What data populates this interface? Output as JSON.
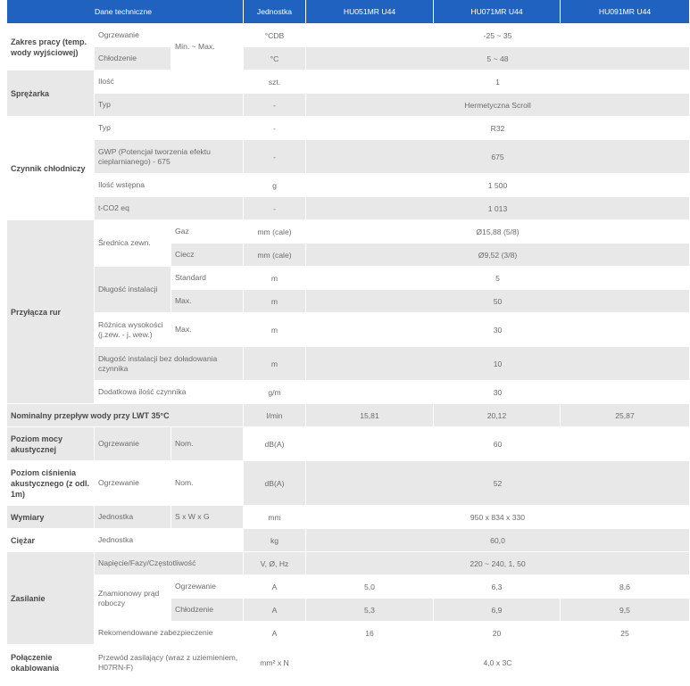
{
  "header": {
    "spec": "Dane techniczne",
    "unit": "Jednostka",
    "m1": "HU051MR U44",
    "m2": "HU071MR U44",
    "m3": "HU091MR U44"
  },
  "zakres": {
    "cat": "Zakres pracy (temp. wody wyjściowej)",
    "minmax": "Min. ~ Max.",
    "r1": {
      "label": "Ogrzewanie",
      "unit": "°CDB",
      "val": "-25 ~ 35"
    },
    "r2": {
      "label": "Chłodzenie",
      "unit": "°C",
      "val": "5 ~ 48"
    }
  },
  "sprezarka": {
    "cat": "Sprężarka",
    "r1": {
      "label": "Ilość",
      "unit": "szt.",
      "val": "1"
    },
    "r2": {
      "label": "Typ",
      "unit": "-",
      "val": "Hermetyczna Scroll"
    }
  },
  "czynnik": {
    "cat": "Czynnik chłodniczy",
    "r1": {
      "label": "Typ",
      "unit": "-",
      "val": "R32"
    },
    "r2": {
      "label": "GWP (Potencjał tworzenia efektu cieplarnianego) - 675",
      "unit": "-",
      "val": "675"
    },
    "r3": {
      "label": "Ilość wstępna",
      "unit": "g",
      "val": "1 500"
    },
    "r4": {
      "label": "t-CO2 eq",
      "unit": "-",
      "val": "1 013"
    }
  },
  "przylacza": {
    "cat": "Przyłącza rur",
    "srednica": "Średnica zewn.",
    "gaz": {
      "label": "Gaz",
      "unit": "mm (cale)",
      "val": "Ø15,88 (5/8)"
    },
    "ciecz": {
      "label": "Ciecz",
      "unit": "mm (cale)",
      "val": "Ø9,52 (3/8)"
    },
    "dlugosc": "Długość instalacji",
    "standard": {
      "label": "Standard",
      "unit": "m",
      "val": "5"
    },
    "max": {
      "label": "Max.",
      "unit": "m",
      "val": "50"
    },
    "roznica": {
      "label": "Różnica wysokości (j.zew. - j. wew.)",
      "sub": "Max.",
      "unit": "m",
      "val": "30"
    },
    "bez": {
      "label": "Długość instalacji bez doładowania czynnika",
      "unit": "m",
      "val": "10"
    },
    "dodatkowa": {
      "label": "Dodatkowa ilość czynnika",
      "unit": "g/m",
      "val": "30"
    }
  },
  "przeplyw": {
    "cat": "Nominalny przepływ wody przy LWT 35°C",
    "unit": "l/min",
    "v1": "15,81",
    "v2": "20,12",
    "v3": "25,87"
  },
  "moc": {
    "cat": "Poziom mocy akustycznej",
    "label": "Ogrzewanie",
    "sub": "Nom.",
    "unit": "dB(A)",
    "val": "60"
  },
  "cisnienie": {
    "cat": "Poziom ciśnienia akustycznego (z odl. 1m)",
    "label": "Ogrzewanie",
    "sub": "Nom.",
    "unit": "dB(A)",
    "val": "52"
  },
  "wymiary": {
    "cat": "Wymiary",
    "label": "Jednostka",
    "sub": "S x W x G",
    "unit": "mm",
    "val": "950 x 834 x 330"
  },
  "ciezar": {
    "cat": "Ciężar",
    "label": "Jednostka",
    "unit": "kg",
    "val": "60,0"
  },
  "zasilanie": {
    "cat": "Zasilanie",
    "napiecie": {
      "label": "Napięcie/Fazy/Częstotliwość",
      "unit": "V, Ø, Hz",
      "val": "220 ~ 240, 1, 50"
    },
    "prad": "Znamionowy prąd roboczy",
    "ogrz": {
      "label": "Ogrzewanie",
      "unit": "A",
      "v1": "5,0",
      "v2": "6,3",
      "v3": "8,6"
    },
    "chlo": {
      "label": "Chłodzenie",
      "unit": "A",
      "v1": "5,3",
      "v2": "6,9",
      "v3": "9,5"
    },
    "zab": {
      "label": "Rekomendowane zabezpieczenie",
      "unit": "A",
      "v1": "16",
      "v2": "20",
      "v3": "25"
    }
  },
  "polaczenie": {
    "cat": "Połączenie okablowania",
    "label": "Przewód zasilający (wraz z uziemieniem, H07RN-F)",
    "unit": "mm² x N",
    "val": "4,0 x 3C"
  }
}
